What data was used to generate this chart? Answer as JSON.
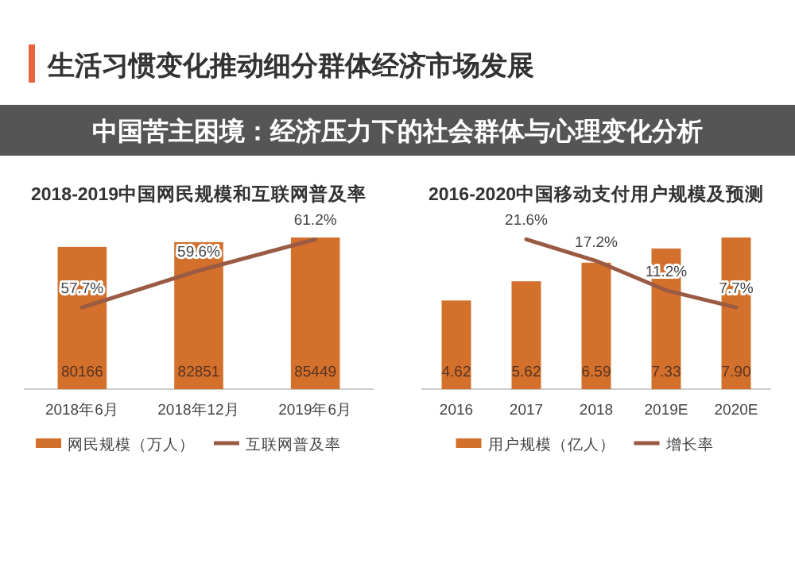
{
  "chart_data": [
    {
      "type": "bar",
      "title": "2018-2019中国网民规模和互联网普及率",
      "annotations": [
        "生活习惯变化推动细分群体经济市场发展",
        "中国苦主困境：经济压力下的社会群体与心理变化分析"
      ],
      "categories": [
        "2018年6月",
        "2018年12月",
        "2019年6月"
      ],
      "tick_labels": "x",
      "legend": "bottom",
      "series": [
        {
          "name": "网民规模（万人）",
          "color": "#d2702c",
          "values": [
            80166,
            82851,
            85449
          ],
          "value_labels": [
            "80166",
            "82851",
            "85449"
          ]
        },
        {
          "name": "互联网普及率",
          "type": "line",
          "axis": "y2",
          "color": "#9a5a44",
          "values": [
            57.7,
            59.6,
            61.2
          ],
          "value_labels": [
            "57.7%",
            "59.6%",
            "61.2%"
          ]
        }
      ]
    },
    {
      "type": "bar",
      "title": "2016-2020中国移动支付用户规模及预测",
      "categories": [
        "2016",
        "2017",
        "2018",
        "2019E",
        "2020E"
      ],
      "tick_labels": "x",
      "legend": "bottom",
      "series": [
        {
          "name": "用户规模（亿人）",
          "color": "#d2702c",
          "values": [
            4.62,
            5.62,
            6.59,
            7.33,
            7.9
          ],
          "value_labels": [
            "4.62",
            "5.62",
            "6.59",
            "7.33",
            "7.90"
          ]
        },
        {
          "name": "增长率",
          "type": "line",
          "axis": "y2",
          "color": "#9a5a44",
          "values": [
            null,
            21.6,
            17.2,
            11.2,
            7.7
          ],
          "value_labels": [
            null,
            "21.6%",
            "17.2%",
            "11.2%",
            "7.7%"
          ]
        }
      ]
    }
  ]
}
